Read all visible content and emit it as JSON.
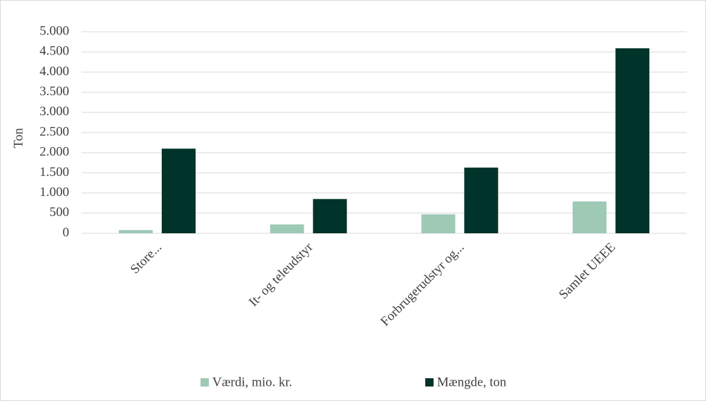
{
  "chart_data": {
    "type": "bar",
    "y_label": "Ton",
    "categories": [
      "Store...",
      "It- og teleudstyr",
      "Forbrugerudstyr og...",
      "Samlet UEEE"
    ],
    "series": [
      {
        "name": "Værdi, mio. kr.",
        "color": "#9dc9b5",
        "values": [
          80,
          220,
          470,
          790
        ]
      },
      {
        "name": "Mængde, ton",
        "color": "#003329",
        "values": [
          2100,
          850,
          1630,
          4590
        ]
      }
    ],
    "ylim": [
      0,
      5000
    ],
    "yticks": [
      0,
      500,
      {
        "value": 1000,
        "label": "1.000"
      },
      {
        "value": 1500,
        "label": "1.500"
      },
      {
        "value": 2000,
        "label": "2.000"
      },
      {
        "value": 2500,
        "label": "2.500"
      },
      {
        "value": 3000,
        "label": "3.000"
      },
      {
        "value": 3500,
        "label": "3.500"
      },
      {
        "value": 4000,
        "label": "4.000"
      },
      {
        "value": 4500,
        "label": "4.500"
      },
      {
        "value": 5000,
        "label": "5.000"
      }
    ],
    "grid": true,
    "legend": "bottom"
  }
}
